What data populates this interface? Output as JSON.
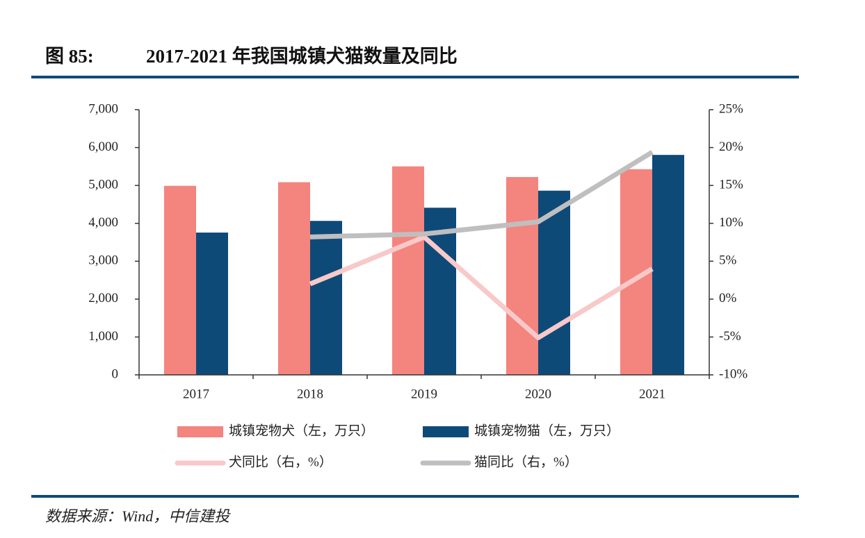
{
  "chart_data": {
    "type": "bar",
    "figure_label": "图 85:",
    "title": "2017-2021 年我国城镇犬猫数量及同比",
    "source": "数据来源：Wind，中信建投",
    "categories": [
      "2017",
      "2018",
      "2019",
      "2020",
      "2021"
    ],
    "series": [
      {
        "name": "城镇宠物犬（左，万只）",
        "type": "bar",
        "color": "#f4847e",
        "values": [
          4990,
          5085,
          5503,
          5222,
          5429
        ]
      },
      {
        "name": "城镇宠物猫（左，万只）",
        "type": "bar",
        "color": "#0e4a78",
        "values": [
          3756,
          4064,
          4412,
          4862,
          5806
        ]
      },
      {
        "name": "犬同比（右，%）",
        "type": "line",
        "axis": "y2",
        "color": "#f8c9c9",
        "values": [
          null,
          2,
          8.2,
          -5.1,
          4
        ]
      },
      {
        "name": "猫同比（右，%）",
        "type": "line",
        "axis": "y2",
        "color": "#bfbfbf",
        "values": [
          null,
          8.2,
          8.6,
          10.2,
          19.4
        ]
      }
    ],
    "ylim": [
      0,
      7000
    ],
    "yticks": [
      0,
      {
        "value": 1000,
        "label": "1,000"
      },
      {
        "value": 2000,
        "label": "2,000"
      },
      {
        "value": 3000,
        "label": "3,000"
      },
      {
        "value": 4000,
        "label": "4,000"
      },
      {
        "value": 5000,
        "label": "5,000"
      },
      {
        "value": 6000,
        "label": "6,000"
      },
      {
        "value": 7000,
        "label": "7,000"
      }
    ],
    "y2lim": [
      -10,
      25
    ],
    "y2ticks": [
      {
        "value": -10,
        "label": "-10%"
      },
      {
        "value": -5,
        "label": "-5%"
      },
      {
        "value": 0,
        "label": "0%"
      },
      {
        "value": 5,
        "label": "5%"
      },
      {
        "value": 10,
        "label": "10%"
      },
      {
        "value": 15,
        "label": "15%"
      },
      {
        "value": 20,
        "label": "20%"
      },
      {
        "value": 25,
        "label": "25%"
      }
    ],
    "grid": false
  }
}
